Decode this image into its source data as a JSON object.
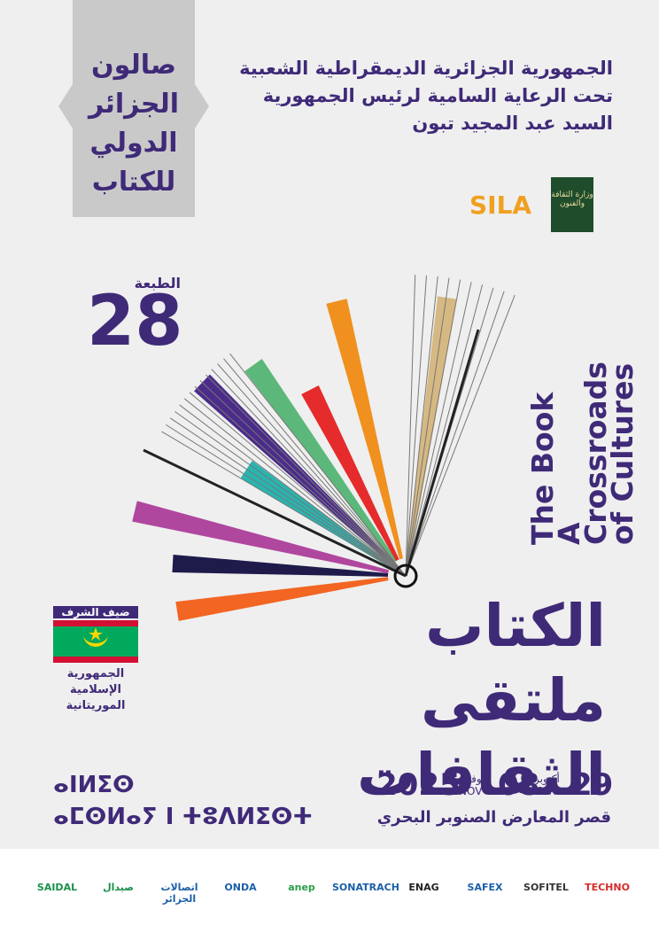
{
  "header": {
    "lines": [
      "الجمهورية الجزائرية الديمقراطية الشعبية",
      "تحت الرعاية السامية لرئيس الجمهورية",
      "السيد عبد المجيد تبون"
    ]
  },
  "banner": {
    "lines": [
      "صالون",
      "الجزائر",
      "الدولي",
      "للكتاب"
    ]
  },
  "logos": {
    "sila": "SILA",
    "ministry": "وزارة الثقافة والفنون"
  },
  "edition": {
    "label": "الطبعة",
    "number": "28"
  },
  "slogan": {
    "lines": [
      "The Book",
      "A Crossroads",
      "of Cultures"
    ]
  },
  "theme": {
    "lines": [
      "الكتاب",
      "ملتقى الثقافات"
    ]
  },
  "guest": {
    "label": "ضيف الشرف",
    "country": [
      "الجمهورية",
      "الإسلامية",
      "الموريتانية"
    ]
  },
  "tifinagh": {
    "lines": [
      "ⴰⵏⵍⵉⵙ",
      "ⴰⵎⵙⵍⴰⵢ ⵏ ⵜⵓⴷⵍⵉⵙⵜ"
    ]
  },
  "dates": {
    "start_day": "29",
    "start_month_ar": "أكتوبر",
    "start_month_en": "OCT",
    "end_day": "08",
    "end_month_ar": "نوفمبر",
    "end_month_en": "NOV",
    "year": "2025"
  },
  "venue": "قصر المعارض الصنوبر البحري",
  "sponsors": [
    "SAIDAL",
    "صيدال",
    "اتصالات الجزائر",
    "ONDA",
    "anep",
    "SONATRACH",
    "ENAG",
    "SAFEX",
    "SOFITEL",
    "TECHNO"
  ]
}
